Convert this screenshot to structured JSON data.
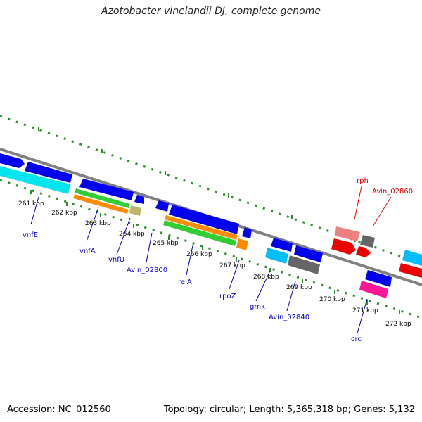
{
  "title": "Azotobacter vinelandii DJ, complete genome",
  "footer": {
    "accession": "Accession: NC_012560",
    "topology": "Topology: circular; Length: 5,365,318 bp; Genes: 5,132"
  },
  "ticks": [
    "261 kbp",
    "262 kbp",
    "263 kbp",
    "264 kbp",
    "265 kbp",
    "266 kbp",
    "267 kbp",
    "268 kbp",
    "269 kbp",
    "270 kbp",
    "271 kbp",
    "272 kbp"
  ],
  "gene_labels": [
    {
      "name": "vnfE",
      "color": "#0000cc"
    },
    {
      "name": "vnfA",
      "color": "#0000cc"
    },
    {
      "name": "vnfU",
      "color": "#0000cc"
    },
    {
      "name": "Avin_02800",
      "color": "#0000cc"
    },
    {
      "name": "relA",
      "color": "#0000cc"
    },
    {
      "name": "rpoZ",
      "color": "#0000cc"
    },
    {
      "name": "gmk",
      "color": "#0000cc"
    },
    {
      "name": "Avin_02840",
      "color": "#0000cc"
    },
    {
      "name": "crc",
      "color": "#0000cc"
    },
    {
      "name": "rph",
      "color": "#dd0000"
    },
    {
      "name": "Avin_02860",
      "color": "#dd0000"
    }
  ],
  "colors": {
    "backbone": "#808080",
    "dots": "#2e8b2e",
    "forward_gene": "#0000ee",
    "reverse_gene": "#ee0000"
  }
}
